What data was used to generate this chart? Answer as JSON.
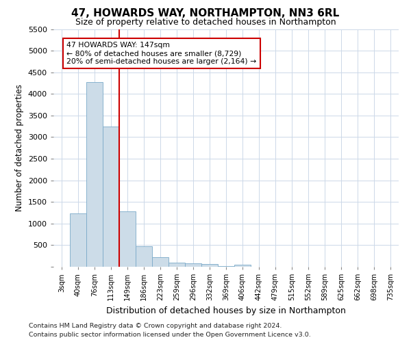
{
  "title": "47, HOWARDS WAY, NORTHAMPTON, NN3 6RL",
  "subtitle": "Size of property relative to detached houses in Northampton",
  "xlabel": "Distribution of detached houses by size in Northampton",
  "ylabel": "Number of detached properties",
  "footnote1": "Contains HM Land Registry data © Crown copyright and database right 2024.",
  "footnote2": "Contains public sector information licensed under the Open Government Licence v3.0.",
  "bar_labels": [
    "3sqm",
    "40sqm",
    "76sqm",
    "113sqm",
    "149sqm",
    "186sqm",
    "223sqm",
    "259sqm",
    "296sqm",
    "332sqm",
    "369sqm",
    "406sqm",
    "442sqm",
    "479sqm",
    "515sqm",
    "552sqm",
    "589sqm",
    "625sqm",
    "662sqm",
    "698sqm",
    "735sqm"
  ],
  "bar_values": [
    0,
    1230,
    4280,
    3250,
    1280,
    480,
    215,
    100,
    75,
    60,
    10,
    55,
    0,
    0,
    0,
    0,
    0,
    0,
    0,
    0,
    0
  ],
  "bar_color": "#ccdce8",
  "bar_edge_color": "#7aaac8",
  "vline_color": "#cc0000",
  "vline_index": 3.5,
  "annotation_text": "47 HOWARDS WAY: 147sqm\n← 80% of detached houses are smaller (8,729)\n20% of semi-detached houses are larger (2,164) →",
  "annotation_box_color": "#cc0000",
  "ylim": [
    0,
    5500
  ],
  "yticks": [
    0,
    500,
    1000,
    1500,
    2000,
    2500,
    3000,
    3500,
    4000,
    4500,
    5000,
    5500
  ],
  "background_color": "#ffffff",
  "grid_color": "#ccd8e8"
}
